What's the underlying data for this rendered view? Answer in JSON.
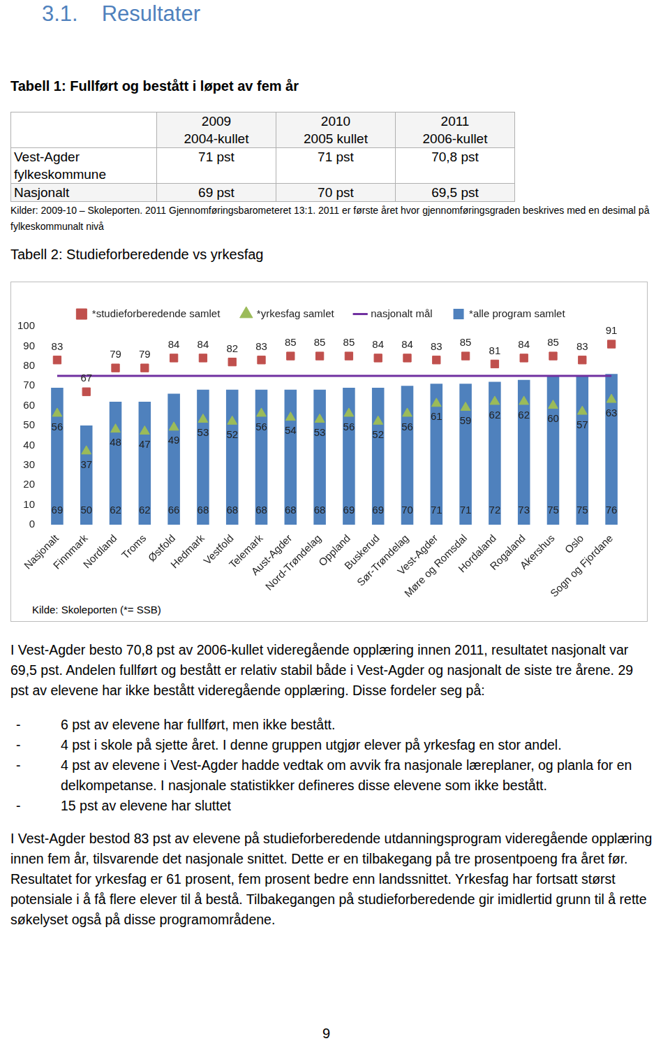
{
  "heading": {
    "number": "3.1.",
    "text": "Resultater"
  },
  "table1": {
    "title": "Tabell 1: Fullført og bestått i løpet av fem år",
    "header": [
      [
        "2009",
        "2004-kullet"
      ],
      [
        "2010",
        "2005 kullet"
      ],
      [
        "2011",
        "2006-kullet"
      ]
    ],
    "rows": [
      [
        "Vest-Agder fylkeskommune",
        "71 pst",
        "71 pst",
        "70,8 pst"
      ],
      [
        "Nasjonalt",
        "69 pst",
        "70 pst",
        "69,5 pst"
      ]
    ],
    "note": "Kilder: 2009-10 – Skoleporten. 2011 Gjennomføringsbarometeret 13:1. 2011 er første året hvor gjennomføringsgraden beskrives med en desimal på fylkeskommunalt nivå"
  },
  "table2_title": "Tabell 2: Studieforberedende vs yrkesfag",
  "chart_data": {
    "type": "bar",
    "categories": [
      "Nasjonalt",
      "Finnmark",
      "Nordland",
      "Troms",
      "Østfold",
      "Hedmark",
      "Vestfold",
      "Telemark",
      "Aust-Agder",
      "Nord-Trøndelag",
      "Oppland",
      "Buskerud",
      "Sør-Trøndelag",
      "Vest-Agder",
      "Møre og Romsdal",
      "Hordaland",
      "Rogaland",
      "Akershus",
      "Oslo",
      "Sogn og Fjordane"
    ],
    "series": [
      {
        "name": "*alle program samlet",
        "type": "bar",
        "color": "#4f81bd",
        "data_labels": true,
        "values": [
          69,
          50,
          62,
          62,
          66,
          68,
          68,
          68,
          68,
          68,
          69,
          69,
          70,
          71,
          71,
          72,
          73,
          75,
          75,
          76
        ]
      },
      {
        "name": "nasjonalt mål",
        "type": "line",
        "color": "#7030a0",
        "line_style": "solid",
        "marker": "none",
        "data_labels": false,
        "values": [
          75,
          75,
          75,
          75,
          75,
          75,
          75,
          75,
          75,
          75,
          75,
          75,
          75,
          75,
          75,
          75,
          75,
          75,
          75,
          75
        ]
      },
      {
        "name": "*studieforberedende samlet",
        "type": "scatter",
        "color": "#c0504d",
        "marker": "square",
        "data_labels": true,
        "values": [
          83,
          67,
          79,
          79,
          84,
          84,
          82,
          83,
          85,
          85,
          85,
          84,
          84,
          83,
          85,
          81,
          84,
          85,
          83,
          91
        ]
      },
      {
        "name": "*yrkesfag samlet",
        "type": "scatter",
        "color": "#9bbb59",
        "marker": "triangle",
        "data_labels": true,
        "values": [
          56,
          37,
          48,
          47,
          49,
          53,
          52,
          56,
          54,
          53,
          56,
          52,
          56,
          61,
          59,
          62,
          62,
          60,
          57,
          63
        ]
      }
    ],
    "ylim": [
      0,
      100
    ],
    "yticks": [
      0,
      10,
      20,
      30,
      40,
      50,
      60,
      70,
      80,
      90,
      100
    ],
    "grid": false,
    "legend": "top",
    "source": "Kilde: Skoleporten (*= SSB)"
  },
  "body": {
    "text_before_list": "I Vest-Agder besto 70,8 pst av 2006-kullet videregående opplæring innen 2011, resultatet nasjonalt var 69,5 pst. Andelen fullført og bestått er relativ stabil både i Vest-Agder og nasjonalt de siste tre årene. 29 pst av elevene har ikke bestått videregående opplæring. Disse fordeler seg på:",
    "bullet": "-",
    "list": [
      "6 pst av elevene har fullført, men ikke bestått.",
      "4 pst i skole på sjette året. I denne gruppen utgjør elever på yrkesfag en stor andel.",
      "4 pst av elevene i Vest-Agder hadde vedtak om avvik fra nasjonale læreplaner, og planla for en delkompetanse. I nasjonale statistikker defineres disse elevene som ikke bestått.",
      "15 pst av elevene har sluttet"
    ],
    "text_after_list": "I Vest-Agder bestod 83 pst av elevene på studieforberedende utdanningsprogram videregående opplæring innen fem år, tilsvarende det nasjonale snittet. Dette er en tilbakegang på tre prosentpoeng fra året før. Resultatet for yrkesfag er 61 prosent, fem prosent bedre enn landssnittet. Yrkesfag har fortsatt størst potensiale i å få flere elever til å bestå. Tilbakegangen på studieforberedende gir imidlertid grunn til å rette søkelyset også på disse programområdene."
  },
  "page_number": "9"
}
